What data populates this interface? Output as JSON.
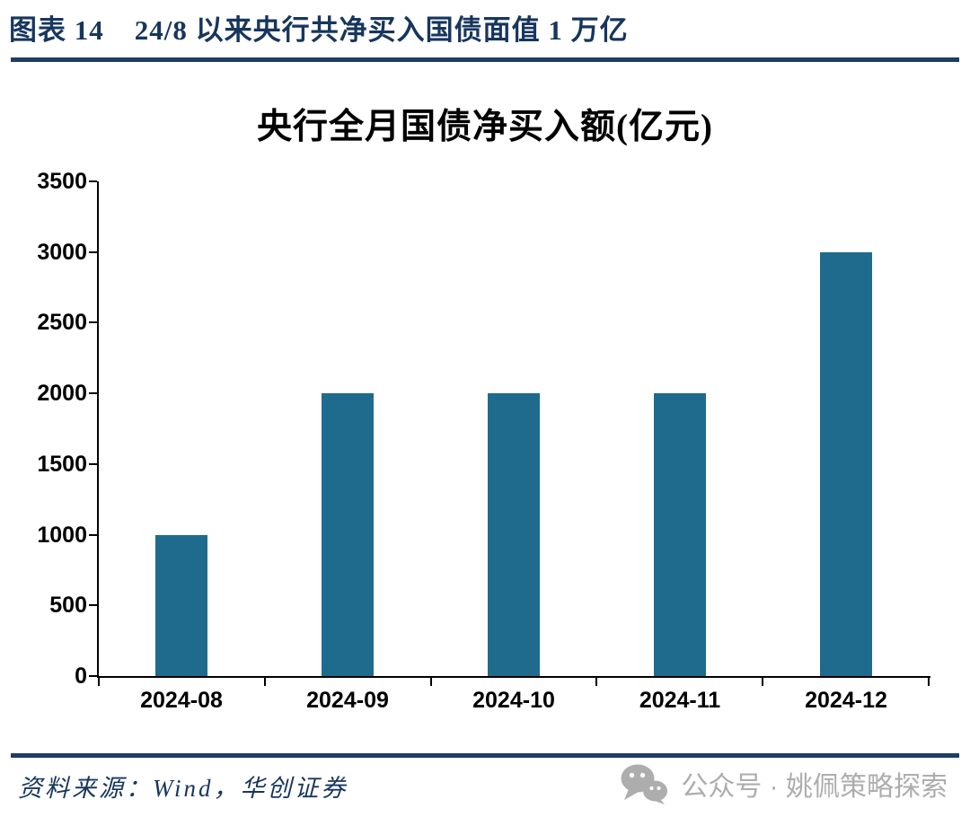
{
  "header": {
    "figure_label": "图表 14",
    "figure_title": "24/8 以来央行共净买入国债面值 1 万亿"
  },
  "chart_data": {
    "type": "bar",
    "title": "央行全月国债净买入额(亿元)",
    "categories": [
      "2024-08",
      "2024-09",
      "2024-10",
      "2024-11",
      "2024-12"
    ],
    "values": [
      1000,
      2000,
      2000,
      2000,
      3000
    ],
    "xlabel": "",
    "ylabel": "",
    "ylim": [
      0,
      3500
    ],
    "ytick_step": 500,
    "grid": false,
    "legend_position": "none",
    "bar_color": "#1F6B8E"
  },
  "footer": {
    "source": "资料来源：Wind，华创证券",
    "watermark_icon": "wechat-icon",
    "watermark_text": "公众号 · 姚佩策略探索"
  },
  "colors": {
    "navy": "#17365D",
    "rule": "#1F3C64",
    "bar": "#1F6B8E",
    "watermark_gray": "#ADADAD",
    "axis": "#000000"
  }
}
